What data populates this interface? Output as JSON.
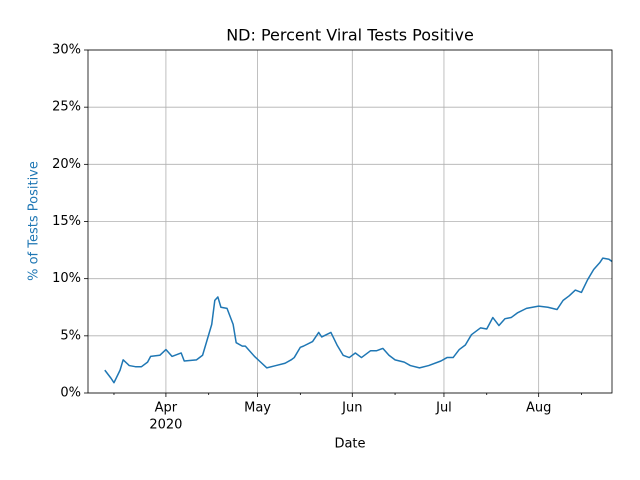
{
  "chart_data": {
    "type": "line",
    "title": "ND: Percent Viral Tests Positive",
    "x_label": "Date",
    "y_label": "% of Tests Positive",
    "y_label_color": "#1f77b4",
    "x_year_label": "2020",
    "x": [
      72,
      74,
      75,
      77,
      78,
      80,
      82,
      84,
      86,
      87,
      90,
      92,
      94,
      97,
      98,
      102,
      104,
      105,
      107,
      108,
      109,
      110,
      112,
      114,
      115,
      117,
      118,
      121,
      123,
      125,
      128,
      131,
      133,
      134,
      136,
      137,
      140,
      142,
      143,
      146,
      148,
      150,
      152,
      154,
      156,
      159,
      161,
      163,
      165,
      167,
      170,
      172,
      175,
      178,
      182,
      184,
      186,
      188,
      190,
      192,
      195,
      197,
      199,
      201,
      203,
      205,
      207,
      210,
      212,
      214,
      217,
      220,
      222,
      224,
      226,
      228,
      230,
      232,
      234,
      235,
      237,
      238
    ],
    "series": [
      {
        "name": "% of Tests Positive",
        "color": "#1f77b4",
        "values": [
          2.0,
          1.3,
          0.9,
          2.0,
          2.9,
          2.4,
          2.3,
          2.3,
          2.7,
          3.2,
          3.3,
          3.8,
          3.2,
          3.5,
          2.8,
          2.9,
          3.3,
          4.2,
          6.0,
          8.1,
          8.4,
          7.5,
          7.4,
          6.0,
          4.4,
          4.1,
          4.1,
          3.2,
          2.7,
          2.2,
          2.4,
          2.6,
          2.9,
          3.1,
          4.0,
          4.1,
          4.5,
          5.3,
          4.9,
          5.3,
          4.2,
          3.3,
          3.1,
          3.5,
          3.1,
          3.7,
          3.7,
          3.9,
          3.3,
          2.9,
          2.7,
          2.4,
          2.2,
          2.4,
          2.8,
          3.1,
          3.1,
          3.8,
          4.2,
          5.1,
          5.7,
          5.6,
          6.6,
          5.9,
          6.5,
          6.6,
          7.0,
          7.4,
          7.5,
          7.6,
          7.5,
          7.3,
          8.1,
          8.5,
          9.0,
          8.8,
          9.9,
          10.8,
          11.4,
          11.8,
          11.7,
          11.5
        ]
      }
    ],
    "xlim": [
      66.5,
      238
    ],
    "xticks": [
      {
        "value": 92,
        "label": "Apr"
      },
      {
        "value": 122,
        "label": "May"
      },
      {
        "value": 153,
        "label": "Jun"
      },
      {
        "value": 183,
        "label": "Jul"
      },
      {
        "value": 214,
        "label": "Aug"
      }
    ],
    "xminorticks": [
      75,
      106,
      136,
      167,
      197,
      228
    ],
    "ylim": [
      0,
      30
    ],
    "yticks": [
      {
        "value": 0,
        "label": "0%"
      },
      {
        "value": 5,
        "label": "5%"
      },
      {
        "value": 10,
        "label": "10%"
      },
      {
        "value": 15,
        "label": "15%"
      },
      {
        "value": 20,
        "label": "20%"
      },
      {
        "value": 25,
        "label": "25%"
      },
      {
        "value": 30,
        "label": "30%"
      }
    ],
    "grid": true
  }
}
